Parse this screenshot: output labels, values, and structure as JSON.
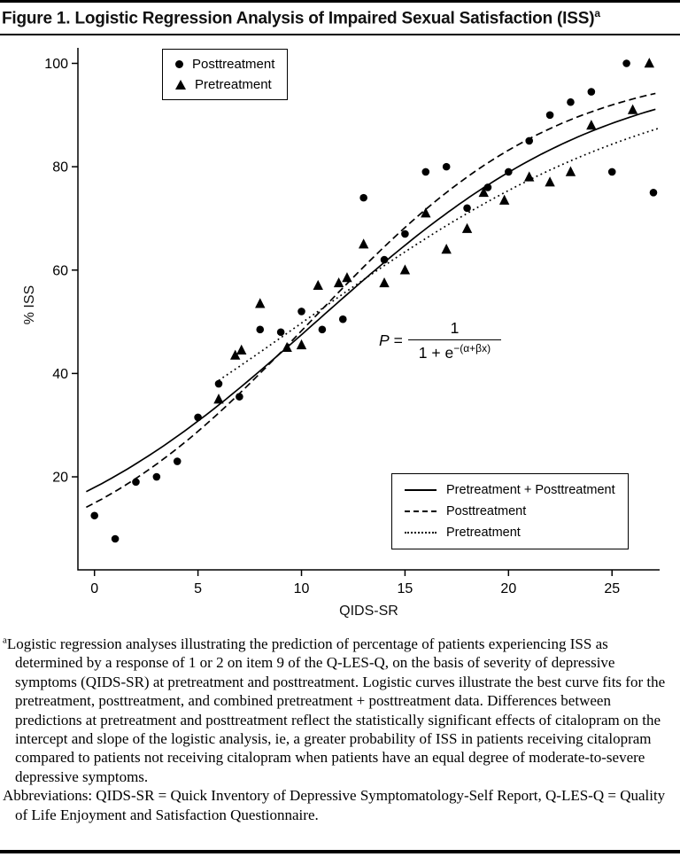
{
  "figure": {
    "title": "Figure 1. Logistic Regression Analysis of Impaired Sexual Satisfaction (ISS)",
    "title_superscript": "a"
  },
  "chart_data": {
    "type": "scatter",
    "title": "Figure 1. Logistic Regression Analysis of Impaired Sexual Satisfaction (ISS)",
    "xlabel": "QIDS-SR",
    "ylabel": "% ISS",
    "xlim": [
      -0.8,
      27.3
    ],
    "ylim": [
      2,
      103
    ],
    "x_ticks": [
      0,
      5,
      10,
      15,
      20,
      25
    ],
    "y_ticks": [
      20,
      40,
      60,
      80,
      100
    ],
    "grid": false,
    "series": [
      {
        "name": "Posttreatment",
        "marker": "circle",
        "points": [
          [
            0,
            12.5
          ],
          [
            1,
            8
          ],
          [
            2,
            19
          ],
          [
            3,
            20
          ],
          [
            4,
            23
          ],
          [
            5,
            31.5
          ],
          [
            6,
            38
          ],
          [
            7,
            35.5
          ],
          [
            8,
            48.5
          ],
          [
            9,
            48
          ],
          [
            10,
            52
          ],
          [
            11,
            48.5
          ],
          [
            12,
            50.5
          ],
          [
            13,
            74
          ],
          [
            14,
            62
          ],
          [
            15,
            67
          ],
          [
            16,
            79
          ],
          [
            17,
            80
          ],
          [
            18,
            72
          ],
          [
            19,
            76
          ],
          [
            20,
            79
          ],
          [
            21,
            85
          ],
          [
            22,
            90
          ],
          [
            23,
            92.5
          ],
          [
            24,
            94.5
          ],
          [
            25,
            79
          ],
          [
            25.7,
            100
          ],
          [
            27,
            75
          ]
        ]
      },
      {
        "name": "Pretreatment",
        "marker": "triangle",
        "points": [
          [
            6,
            35
          ],
          [
            6.8,
            43.5
          ],
          [
            7.1,
            44.5
          ],
          [
            8,
            53.5
          ],
          [
            9.3,
            45
          ],
          [
            10,
            45.5
          ],
          [
            10.8,
            57
          ],
          [
            11.8,
            57.5
          ],
          [
            12.2,
            58.5
          ],
          [
            13,
            65
          ],
          [
            14,
            57.5
          ],
          [
            15,
            60
          ],
          [
            16,
            71
          ],
          [
            17,
            64
          ],
          [
            18,
            68
          ],
          [
            18.8,
            75
          ],
          [
            19.8,
            73.5
          ],
          [
            21,
            78
          ],
          [
            22,
            77
          ],
          [
            23,
            79
          ],
          [
            24,
            88
          ],
          [
            26,
            91
          ],
          [
            26.8,
            100
          ]
        ]
      }
    ],
    "curves": [
      {
        "name": "Pretreatment + Posttreatment",
        "style": "solid",
        "alpha": -1.52,
        "beta": 0.142,
        "x_range": [
          -0.4,
          27.3
        ]
      },
      {
        "name": "Posttreatment",
        "style": "dashed",
        "alpha": -1.74,
        "beta": 0.167,
        "x_range": [
          -0.4,
          27.3
        ]
      },
      {
        "name": "Pretreatment",
        "style": "dotted",
        "alpha": -1.14,
        "beta": 0.113,
        "x_range": [
          6,
          27.3
        ]
      }
    ],
    "marker_legend": {
      "position": "top-left-inside",
      "items": [
        {
          "marker": "circle",
          "label": "Posttreatment"
        },
        {
          "marker": "triangle",
          "label": "Pretreatment"
        }
      ]
    },
    "line_legend": {
      "position": "bottom-right-inside",
      "items": [
        {
          "style": "solid",
          "label": "Pretreatment + Posttreatment"
        },
        {
          "style": "dashed",
          "label": "Posttreatment"
        },
        {
          "style": "dotted",
          "label": "Pretreatment"
        }
      ]
    },
    "formula": {
      "p": "P",
      "eq": "=",
      "numerator": "1",
      "denominator_base": "1 + e",
      "exponent": "−(α+βx)"
    },
    "color": "#000000"
  },
  "footnote": {
    "marker": "a",
    "text": "Logistic regression analyses illustrating the prediction of percentage of patients experiencing ISS as determined by a response of 1 or 2 on item 9 of the Q-LES-Q, on the basis of severity of depressive symptoms (QIDS-SR) at pretreatment and posttreatment. Logistic curves illustrate the best curve fits for the pretreatment, posttreatment, and combined pretreatment + posttreatment data. Differences between predictions at pretreatment and posttreatment reflect the statistically significant effects of citalopram on the intercept and slope of the logistic analysis, ie, a greater probability of ISS in patients receiving citalopram compared to patients not receiving citalopram when patients have an equal degree of moderate-to-severe depressive symptoms.",
    "abbreviations": "Abbreviations: QIDS-SR = Quick Inventory of Depressive Symptomatology-Self Report, Q-LES-Q = Quality of Life Enjoyment and Satisfaction Questionnaire."
  }
}
